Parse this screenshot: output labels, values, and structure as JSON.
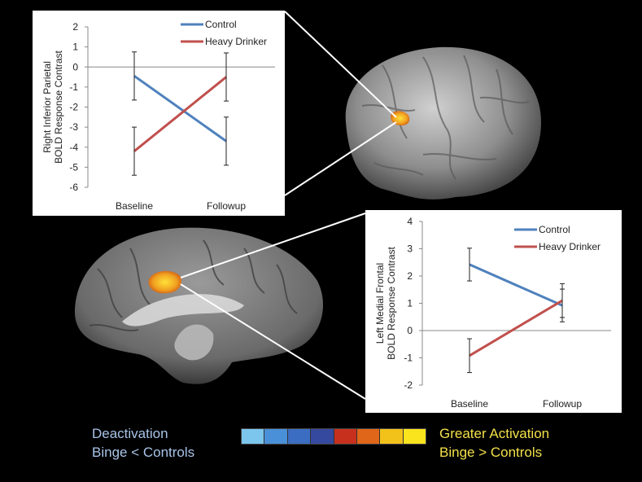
{
  "charts": [
    {
      "type": "line",
      "ylabel_lines": [
        "Right Inferior Parietal",
        "BOLD Response Contrast"
      ],
      "categories": [
        "Baseline",
        "Followup"
      ],
      "ylim": [
        -6,
        2
      ],
      "yticks": [
        "2",
        "1",
        "0",
        "-1",
        "-2",
        "-3",
        "-4",
        "-5",
        "-6"
      ],
      "legend_position": "top-right",
      "series": [
        {
          "name": "Control",
          "color": "#4f81bd",
          "values": [
            -0.45,
            -3.7
          ],
          "error": [
            1.2,
            1.2
          ]
        },
        {
          "name": "Heavy Drinker",
          "color": "#c0504d",
          "values": [
            -4.2,
            -0.5
          ],
          "error": [
            1.2,
            1.2
          ]
        }
      ]
    },
    {
      "type": "line",
      "ylabel_lines": [
        "Left Medial Frontal",
        "BOLD Response Contrast"
      ],
      "categories": [
        "Baseline",
        "Followup"
      ],
      "ylim": [
        -2,
        4
      ],
      "yticks": [
        "4",
        "3",
        "2",
        "1",
        "0",
        "-1",
        "-2"
      ],
      "legend_position": "top-right",
      "series": [
        {
          "name": "Control",
          "color": "#4f81bd",
          "values": [
            2.42,
            0.92
          ],
          "error": [
            0.6,
            0.6
          ]
        },
        {
          "name": "Heavy Drinker",
          "color": "#c0504d",
          "values": [
            -0.92,
            1.1
          ],
          "error": [
            0.62,
            0.62
          ]
        }
      ]
    }
  ],
  "captions": {
    "left": {
      "line1": "Deactivation",
      "line2": "Binge < Controls",
      "color": "#a8c4e8"
    },
    "right": {
      "line1": "Greater Activation",
      "line2": "Binge > Controls",
      "color": "#f2e04a"
    }
  },
  "colorbar": [
    "#7cc6ee",
    "#4a90d9",
    "#3b6ec2",
    "#35499e",
    "#c8301e",
    "#e0661a",
    "#f3c21a",
    "#f9e41e"
  ]
}
